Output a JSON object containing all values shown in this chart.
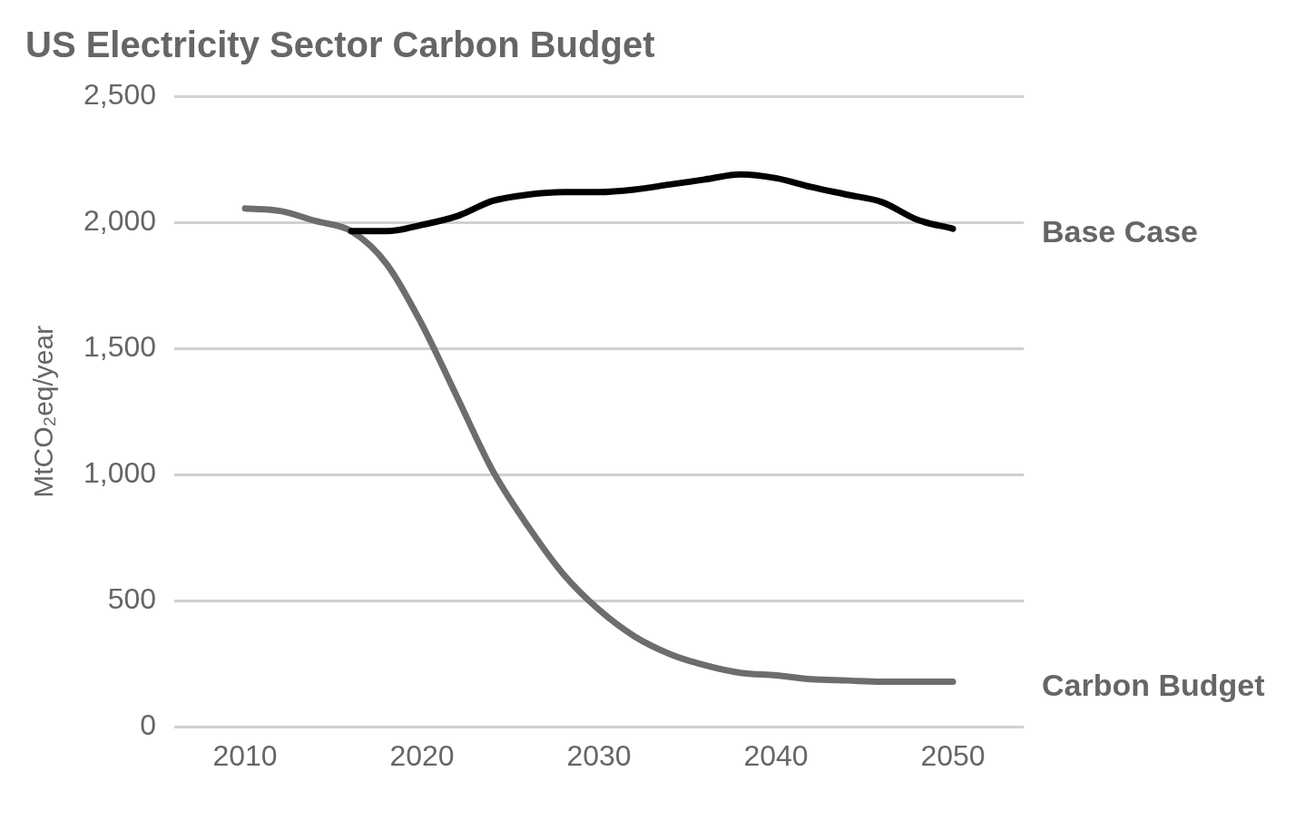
{
  "chart_data": {
    "type": "line",
    "title": "US Electricity Sector Carbon Budget",
    "ylabel": "MtCO₂eq/year",
    "x": [
      2010,
      2012,
      2014,
      2016,
      2018,
      2020,
      2022,
      2024,
      2026,
      2028,
      2030,
      2032,
      2034,
      2036,
      2038,
      2040,
      2042,
      2044,
      2046,
      2048,
      2050
    ],
    "series": [
      {
        "name": "Base Case",
        "color": "#000000",
        "values": [
          null,
          null,
          null,
          1965,
          1965,
          1990,
          2025,
          2085,
          2110,
          2120,
          2120,
          2130,
          2150,
          2170,
          2190,
          2175,
          2140,
          2110,
          2080,
          2010,
          1975
        ]
      },
      {
        "name": "Carbon Budget",
        "color": "#6d6d6d",
        "values": [
          2055,
          2045,
          2005,
          1965,
          1835,
          1595,
          1305,
          1015,
          795,
          605,
          465,
          360,
          290,
          245,
          215,
          205,
          190,
          185,
          180,
          180,
          180
        ]
      }
    ],
    "xlim": [
      2006,
      2054
    ],
    "xticks": [
      2010,
      2020,
      2030,
      2040,
      2050
    ],
    "ylim": [
      0,
      2500
    ],
    "yticks": [
      0,
      500,
      {
        "value": 1000,
        "label": "1,000"
      },
      {
        "value": 1500,
        "label": "1,500"
      },
      {
        "value": 2000,
        "label": "2,000"
      },
      {
        "value": 2500,
        "label": "2,500"
      }
    ],
    "grid": "y",
    "legend": false,
    "marker": "none",
    "line_style": "solid"
  }
}
